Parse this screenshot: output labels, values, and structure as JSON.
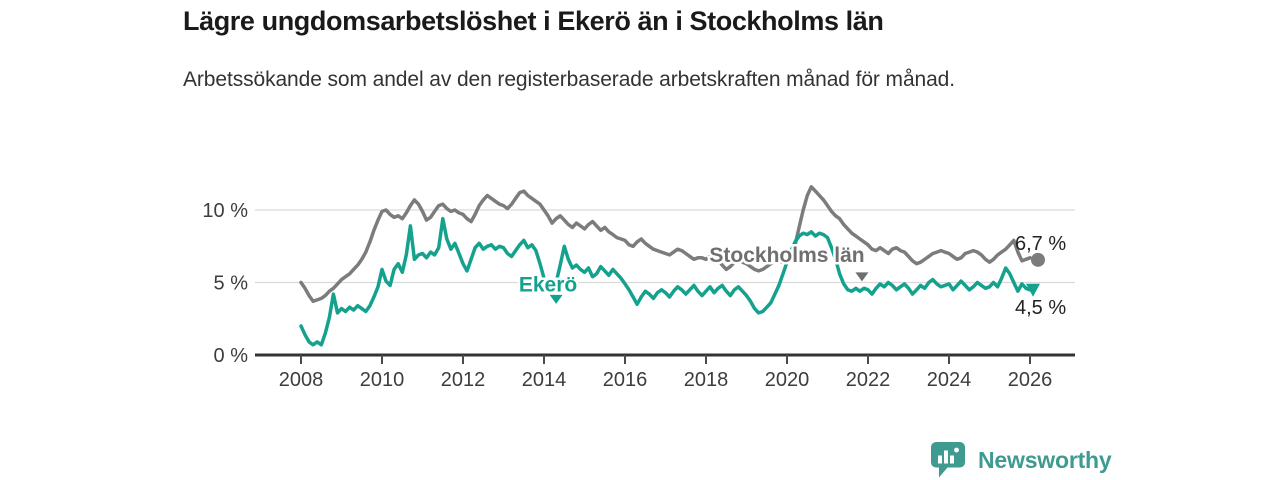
{
  "header": {
    "title": "Lägre ungdomsarbetslöshet i Ekerö än i Stockholms län",
    "subtitle": "Arbetssökande som andel av den registerbaserade arbetskraften månad för månad."
  },
  "branding": {
    "name": "Newsworthy",
    "color": "#3f9b90"
  },
  "colors": {
    "accent_teal": "#14a28e",
    "line_gray": "#7c7c7c",
    "label_gray": "#6f6f6f",
    "grid": "#d9d9d9",
    "axis": "#333333",
    "axis_text": "#3d3d3d",
    "value_text": "#222222"
  },
  "chart_data": {
    "type": "line",
    "title": "Lägre ungdomsarbetslöshet i Ekerö än i Stockholms län",
    "xlabel": "",
    "ylabel": "",
    "ylim": [
      0,
      12
    ],
    "xlim": [
      2008,
      2026.2
    ],
    "grid": true,
    "y_ticks": [
      {
        "value": 0,
        "label": "0 %"
      },
      {
        "value": 5,
        "label": "5 %"
      },
      {
        "value": 10,
        "label": "10 %"
      }
    ],
    "x_ticks": [
      2008,
      2010,
      2012,
      2014,
      2016,
      2018,
      2020,
      2022,
      2024,
      2026
    ],
    "x_start": 2008.0,
    "x_step": 0.1,
    "series": [
      {
        "name": "Stockholms län",
        "color": "#7c7c7c",
        "label_color": "#6f6f6f",
        "end_label": "6,7 %",
        "end_value": 6.7,
        "end_label_pos": "above",
        "end_marker": "circle",
        "label": {
          "x": 2020.0,
          "y": 6.9,
          "pointer": {
            "x": 2021.85,
            "y": 5.7
          }
        },
        "values": [
          5.0,
          4.6,
          4.1,
          3.7,
          3.8,
          3.9,
          4.1,
          4.4,
          4.6,
          4.9,
          5.2,
          5.4,
          5.6,
          5.9,
          6.2,
          6.6,
          7.1,
          7.8,
          8.6,
          9.3,
          9.9,
          10.0,
          9.7,
          9.5,
          9.6,
          9.4,
          9.8,
          10.3,
          10.7,
          10.4,
          9.9,
          9.3,
          9.5,
          9.9,
          10.3,
          10.4,
          10.1,
          9.9,
          10.0,
          9.8,
          9.7,
          9.4,
          9.2,
          9.7,
          10.3,
          10.7,
          11.0,
          10.8,
          10.6,
          10.4,
          10.3,
          10.1,
          10.4,
          10.8,
          11.2,
          11.3,
          11.0,
          10.8,
          10.6,
          10.4,
          10.0,
          9.6,
          9.1,
          9.4,
          9.6,
          9.3,
          9.0,
          8.8,
          9.1,
          8.9,
          8.7,
          9.0,
          9.2,
          8.9,
          8.6,
          8.8,
          8.5,
          8.3,
          8.1,
          8.0,
          7.9,
          7.6,
          7.5,
          7.8,
          8.0,
          7.7,
          7.5,
          7.3,
          7.2,
          7.1,
          7.0,
          6.9,
          7.1,
          7.3,
          7.2,
          7.0,
          6.8,
          6.6,
          6.7,
          6.7,
          6.6,
          6.8,
          6.9,
          6.6,
          6.2,
          5.9,
          6.1,
          6.4,
          6.5,
          6.4,
          6.3,
          6.1,
          5.9,
          5.8,
          5.9,
          6.1,
          6.3,
          6.4,
          6.4,
          6.4,
          6.5,
          6.8,
          7.6,
          8.8,
          10.0,
          11.0,
          11.6,
          11.3,
          11.0,
          10.7,
          10.3,
          9.9,
          9.6,
          9.4,
          9.0,
          8.7,
          8.4,
          8.2,
          8.0,
          7.8,
          7.6,
          7.3,
          7.2,
          7.4,
          7.2,
          7.0,
          7.3,
          7.4,
          7.2,
          7.1,
          6.8,
          6.5,
          6.3,
          6.4,
          6.6,
          6.8,
          7.0,
          7.1,
          7.2,
          7.1,
          7.0,
          6.8,
          6.6,
          6.7,
          7.0,
          7.1,
          7.2,
          7.1,
          6.9,
          6.6,
          6.4,
          6.6,
          6.9,
          7.1,
          7.3,
          7.6,
          7.9,
          7.1,
          6.5,
          6.6,
          6.7
        ]
      },
      {
        "name": "Ekerö",
        "color": "#14a28e",
        "label_color": "#14a28e",
        "end_label": "4,5 %",
        "end_value": 4.5,
        "end_label_pos": "below",
        "end_marker": "triangle",
        "label": {
          "x": 2014.1,
          "y": 4.85,
          "pointer": {
            "x": 2014.3,
            "y": 4.15
          }
        },
        "values": [
          2.0,
          1.4,
          0.9,
          0.7,
          0.9,
          0.7,
          1.5,
          2.6,
          4.2,
          2.9,
          3.2,
          3.0,
          3.3,
          3.1,
          3.4,
          3.2,
          3.0,
          3.4,
          4.0,
          4.7,
          5.9,
          5.1,
          4.8,
          5.9,
          6.3,
          5.7,
          6.9,
          8.9,
          6.6,
          6.9,
          7.0,
          6.7,
          7.1,
          6.9,
          7.4,
          9.4,
          8.0,
          7.3,
          7.7,
          7.0,
          6.3,
          5.8,
          6.6,
          7.4,
          7.7,
          7.3,
          7.5,
          7.6,
          7.3,
          7.5,
          7.4,
          7.0,
          6.8,
          7.2,
          7.6,
          7.9,
          7.4,
          7.6,
          7.2,
          6.3,
          5.3,
          4.6,
          4.4,
          5.0,
          6.2,
          7.5,
          6.6,
          6.0,
          6.2,
          5.9,
          5.7,
          6.0,
          5.4,
          5.6,
          6.1,
          5.8,
          5.5,
          5.9,
          5.6,
          5.3,
          4.9,
          4.5,
          4.0,
          3.5,
          4.0,
          4.4,
          4.2,
          3.9,
          4.3,
          4.5,
          4.3,
          4.0,
          4.4,
          4.7,
          4.5,
          4.2,
          4.5,
          4.8,
          4.4,
          4.1,
          4.4,
          4.7,
          4.3,
          4.6,
          4.8,
          4.4,
          4.1,
          4.5,
          4.7,
          4.4,
          4.1,
          3.7,
          3.2,
          2.9,
          3.0,
          3.3,
          3.6,
          4.2,
          4.8,
          5.6,
          6.4,
          7.2,
          7.8,
          8.2,
          8.4,
          8.3,
          8.5,
          8.2,
          8.4,
          8.3,
          8.1,
          7.4,
          6.6,
          5.6,
          4.9,
          4.5,
          4.4,
          4.6,
          4.4,
          4.6,
          4.5,
          4.2,
          4.6,
          4.9,
          4.7,
          5.0,
          4.8,
          4.5,
          4.7,
          4.9,
          4.6,
          4.2,
          4.5,
          4.8,
          4.6,
          5.0,
          5.2,
          4.9,
          4.7,
          4.8,
          4.9,
          4.5,
          4.8,
          5.1,
          4.8,
          4.5,
          4.7,
          5.0,
          4.8,
          4.6,
          4.7,
          5.0,
          4.7,
          5.3,
          6.0,
          5.6,
          5.0,
          4.4,
          4.9,
          4.6,
          4.5
        ]
      }
    ]
  }
}
